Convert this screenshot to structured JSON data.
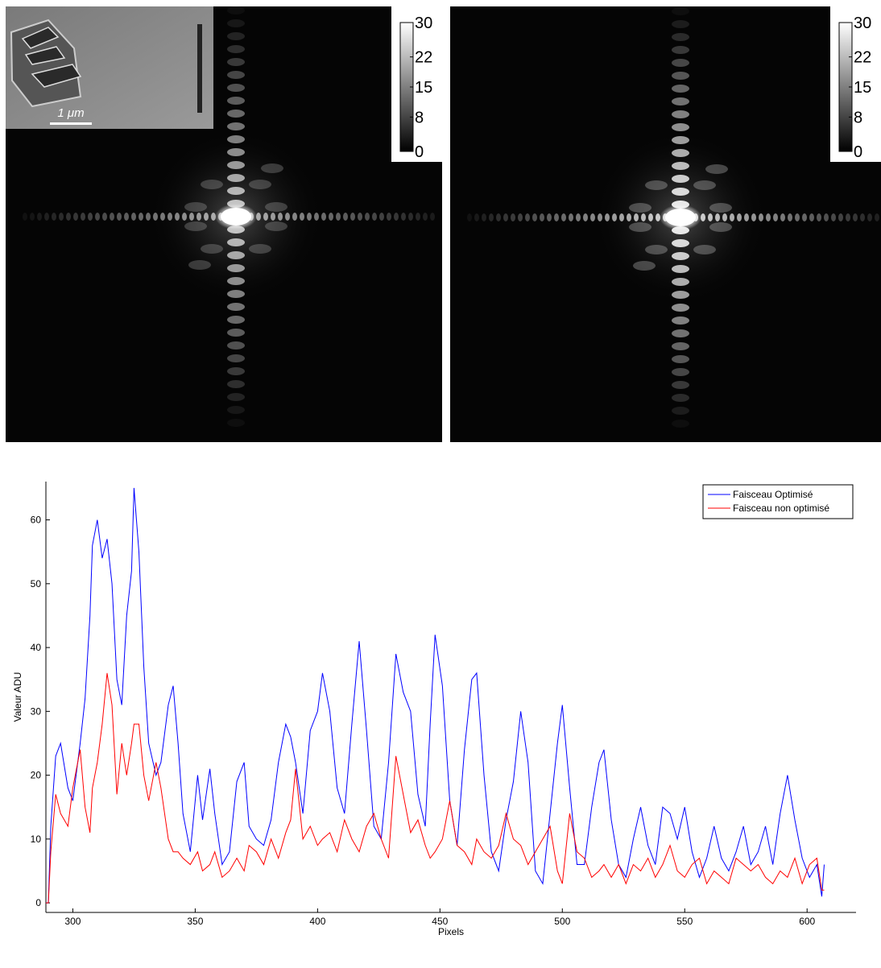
{
  "images": [
    {
      "colorbar_ticks": [
        0,
        8,
        15,
        22,
        30
      ]
    },
    {
      "colorbar_ticks": [
        0,
        8,
        15,
        22,
        30
      ]
    }
  ],
  "inset": {
    "scale_label": "1 μm"
  },
  "chart_data": {
    "type": "line",
    "xlabel": "Pixels",
    "ylabel": "Valeur ADU",
    "legend": "upper right",
    "xlim": [
      289,
      620
    ],
    "ylim": [
      -1.5,
      66
    ],
    "xticks": [
      300,
      350,
      400,
      450,
      500,
      550,
      600
    ],
    "yticks": [
      0,
      10,
      20,
      30,
      40,
      50,
      60
    ],
    "x": [
      289,
      290,
      291,
      293,
      295,
      298,
      300,
      303,
      305,
      307,
      308,
      310,
      312,
      314,
      316,
      318,
      320,
      322,
      324,
      325,
      327,
      329,
      331,
      334,
      336,
      339,
      341,
      343,
      345,
      348,
      351,
      353,
      356,
      358,
      361,
      364,
      367,
      370,
      372,
      375,
      378,
      381,
      384,
      387,
      389,
      391,
      394,
      397,
      400,
      402,
      405,
      408,
      411,
      414,
      417,
      420,
      423,
      426,
      429,
      432,
      435,
      438,
      441,
      444,
      446,
      448,
      451,
      454,
      457,
      460,
      463,
      465,
      468,
      471,
      474,
      477,
      480,
      483,
      486,
      489,
      492,
      495,
      498,
      500,
      503,
      506,
      509,
      512,
      515,
      517,
      520,
      523,
      526,
      529,
      532,
      535,
      538,
      541,
      544,
      547,
      550,
      553,
      556,
      559,
      562,
      565,
      568,
      571,
      574,
      577,
      580,
      583,
      586,
      589,
      592,
      595,
      598,
      601,
      604,
      606,
      607
    ],
    "series": [
      {
        "name": "Faisceau Optimisé",
        "color": "#0000ff",
        "values": [
          0,
          0,
          12,
          23,
          25,
          18,
          16,
          25,
          32,
          45,
          56,
          60,
          54,
          57,
          50,
          35,
          31,
          45,
          52,
          65,
          55,
          37,
          25,
          20,
          22,
          31,
          34,
          25,
          14,
          8,
          20,
          13,
          21,
          14,
          6,
          8,
          19,
          22,
          12,
          10,
          9,
          13,
          22,
          28,
          26,
          22,
          14,
          27,
          30,
          36,
          30,
          18,
          14,
          28,
          41,
          27,
          12,
          10,
          22,
          39,
          33,
          30,
          17,
          12,
          28,
          42,
          34,
          16,
          9,
          24,
          35,
          36,
          20,
          8,
          5,
          13,
          19,
          30,
          22,
          5,
          3,
          14,
          25,
          31,
          18,
          6,
          6,
          15,
          22,
          24,
          13,
          6,
          4,
          10,
          15,
          9,
          6,
          15,
          14,
          10,
          15,
          8,
          4,
          7,
          12,
          7,
          5,
          8,
          12,
          6,
          8,
          12,
          6,
          14,
          20,
          13,
          7,
          4,
          6,
          1,
          6
        ]
      },
      {
        "name": "Faisceau non optimisé",
        "color": "#ff0000",
        "values": [
          0,
          0,
          8,
          17,
          14,
          12,
          18,
          24,
          15,
          11,
          18,
          22,
          28,
          36,
          31,
          17,
          25,
          20,
          25,
          28,
          28,
          20,
          16,
          22,
          18,
          10,
          8,
          8,
          7,
          6,
          8,
          5,
          6,
          8,
          4,
          5,
          7,
          5,
          9,
          8,
          6,
          10,
          7,
          11,
          13,
          21,
          10,
          12,
          9,
          10,
          11,
          8,
          13,
          10,
          8,
          12,
          14,
          10,
          7,
          23,
          17,
          11,
          13,
          9,
          7,
          8,
          10,
          16,
          9,
          8,
          6,
          10,
          8,
          7,
          9,
          14,
          10,
          9,
          6,
          8,
          10,
          12,
          5,
          3,
          14,
          8,
          7,
          4,
          5,
          6,
          4,
          6,
          3,
          6,
          5,
          7,
          4,
          6,
          9,
          5,
          4,
          6,
          7,
          3,
          5,
          4,
          3,
          7,
          6,
          5,
          6,
          4,
          3,
          5,
          4,
          7,
          3,
          6,
          7,
          2,
          2
        ]
      }
    ]
  }
}
